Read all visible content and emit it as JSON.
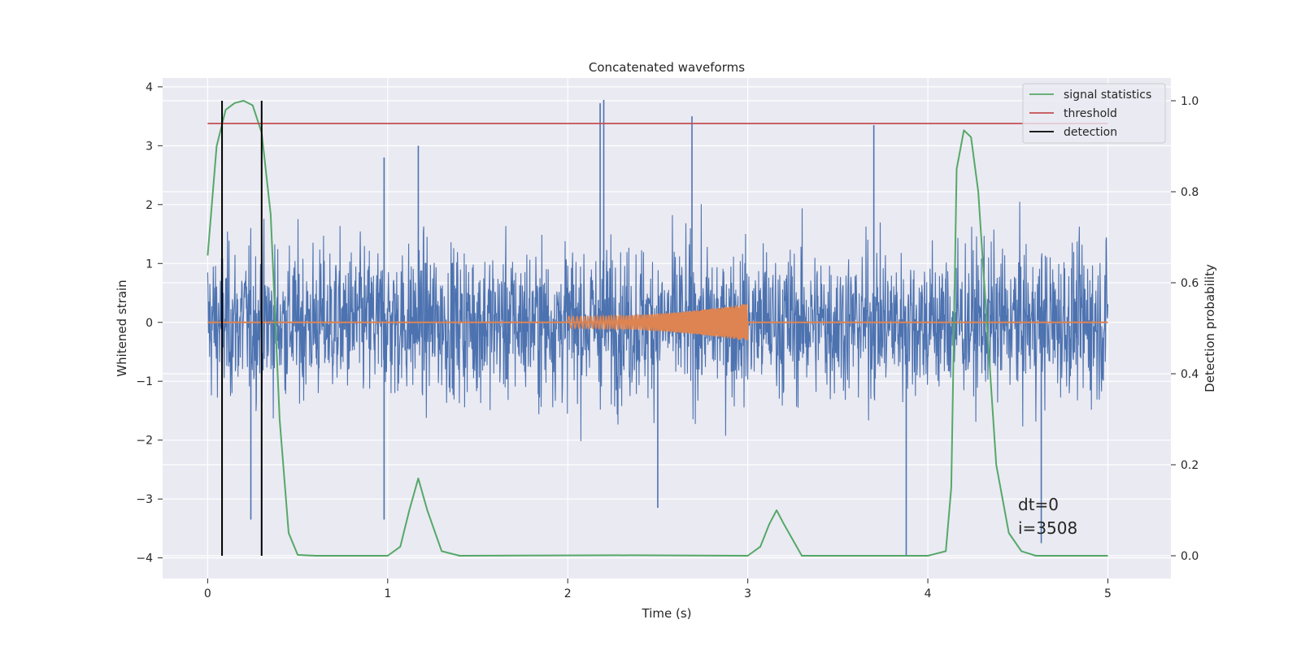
{
  "chart_data": {
    "type": "line",
    "title": "Concatenated waveforms",
    "xlabel": "Time (s)",
    "ylabel": "Whitened strain",
    "y2label": "Detection probability",
    "xlim": [
      -0.25,
      5.35
    ],
    "ylim": [
      -4.35,
      4.15
    ],
    "y2lim": [
      -0.05,
      1.05
    ],
    "xticks": [
      0,
      1,
      2,
      3,
      4,
      5
    ],
    "yticks": [
      -4,
      -3,
      -2,
      -1,
      0,
      1,
      2,
      3,
      4
    ],
    "y2ticks": [
      0.0,
      0.2,
      0.4,
      0.6,
      0.8,
      1.0
    ],
    "y2ticklabels": [
      "0.0",
      "0.2",
      "0.4",
      "0.6",
      "0.8",
      "1.0"
    ],
    "grid": true,
    "legend_position": "top-right",
    "legend": [
      {
        "label": "signal statistics",
        "color": "#55a868"
      },
      {
        "label": "threshold",
        "color": "#c44e52"
      },
      {
        "label": "detection",
        "color": "#000000"
      }
    ],
    "noise": {
      "color": "#4c72b0",
      "x_range": [
        0,
        5
      ],
      "typical_range": [
        -2.5,
        2.5
      ],
      "max": 3.78,
      "min": -3.95,
      "peaks": [
        {
          "x": 2.18,
          "y": 3.72
        },
        {
          "x": 2.2,
          "y": 3.78
        },
        {
          "x": 2.69,
          "y": 3.5
        },
        {
          "x": 3.7,
          "y": 3.35
        },
        {
          "x": 1.17,
          "y": 3.0
        },
        {
          "x": 0.98,
          "y": 2.8
        },
        {
          "x": 3.88,
          "y": -3.95
        },
        {
          "x": 4.63,
          "y": -3.75
        },
        {
          "x": 0.24,
          "y": -3.35
        },
        {
          "x": 0.98,
          "y": -3.35
        },
        {
          "x": 2.5,
          "y": -3.15
        }
      ]
    },
    "injected_signal": {
      "color": "#dd8452",
      "x_range": [
        2.0,
        3.0
      ],
      "amplitude_start": 0.1,
      "amplitude_end": 0.32,
      "baseline": 0
    },
    "signal_statistics": {
      "color": "#55a868",
      "axis": "right",
      "x": [
        0.0,
        0.05,
        0.1,
        0.15,
        0.2,
        0.25,
        0.3,
        0.35,
        0.4,
        0.45,
        0.5,
        0.6,
        1.0,
        1.07,
        1.12,
        1.17,
        1.22,
        1.3,
        1.4,
        2.35,
        3.0,
        3.07,
        3.12,
        3.16,
        3.2,
        3.3,
        4.0,
        4.1,
        4.13,
        4.16,
        4.2,
        4.24,
        4.28,
        4.33,
        4.38,
        4.45,
        4.52,
        4.6,
        5.0
      ],
      "y": [
        0.66,
        0.9,
        0.98,
        0.995,
        1.0,
        0.99,
        0.93,
        0.75,
        0.3,
        0.05,
        0.002,
        0.0,
        0.0,
        0.02,
        0.1,
        0.17,
        0.1,
        0.01,
        0.0,
        0.001,
        0.0,
        0.02,
        0.07,
        0.1,
        0.07,
        0.0,
        0.0,
        0.01,
        0.15,
        0.85,
        0.935,
        0.92,
        0.8,
        0.5,
        0.2,
        0.05,
        0.01,
        0.0,
        0.0
      ]
    },
    "threshold": {
      "color": "#c44e52",
      "value": 0.95,
      "x_range": [
        0,
        5
      ]
    },
    "detections": {
      "color": "#000000",
      "x": [
        0.08,
        0.3
      ]
    },
    "annotation": [
      "dt=0",
      "i=3508"
    ]
  }
}
